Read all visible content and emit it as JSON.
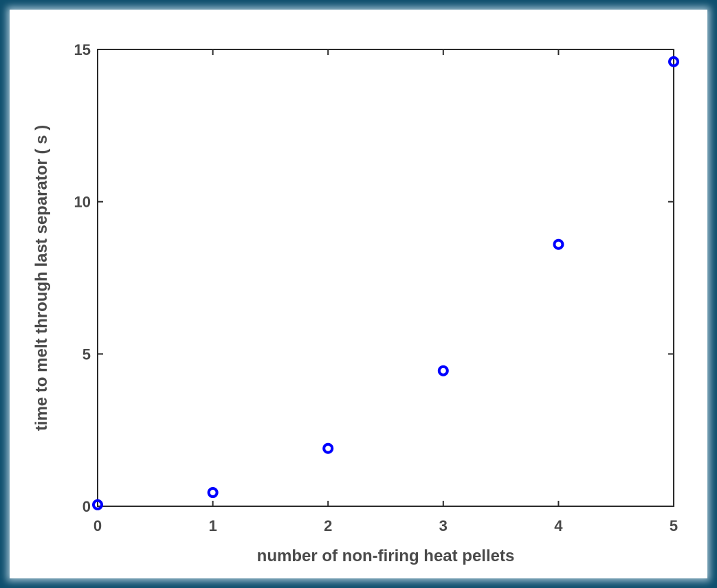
{
  "chart_data": {
    "type": "scatter",
    "title": "",
    "xlabel": "number of non-firing heat pellets",
    "ylabel": "time to melt through last separator ( s )",
    "xlim": [
      0,
      5
    ],
    "ylim": [
      0,
      15
    ],
    "xticks": [
      0,
      1,
      2,
      3,
      4,
      5
    ],
    "yticks": [
      0,
      5,
      10,
      15
    ],
    "xtick_labels": [
      "0",
      "1",
      "2",
      "3",
      "4",
      "5"
    ],
    "ytick_labels": [
      "0",
      "5",
      "10",
      "15"
    ],
    "grid": false,
    "marker": "open-circle",
    "series": [
      {
        "x": [
          0,
          1,
          2,
          3,
          4,
          5
        ],
        "y": [
          0.05,
          0.45,
          1.9,
          4.45,
          8.6,
          14.6
        ],
        "color": "#0000ff"
      }
    ]
  }
}
